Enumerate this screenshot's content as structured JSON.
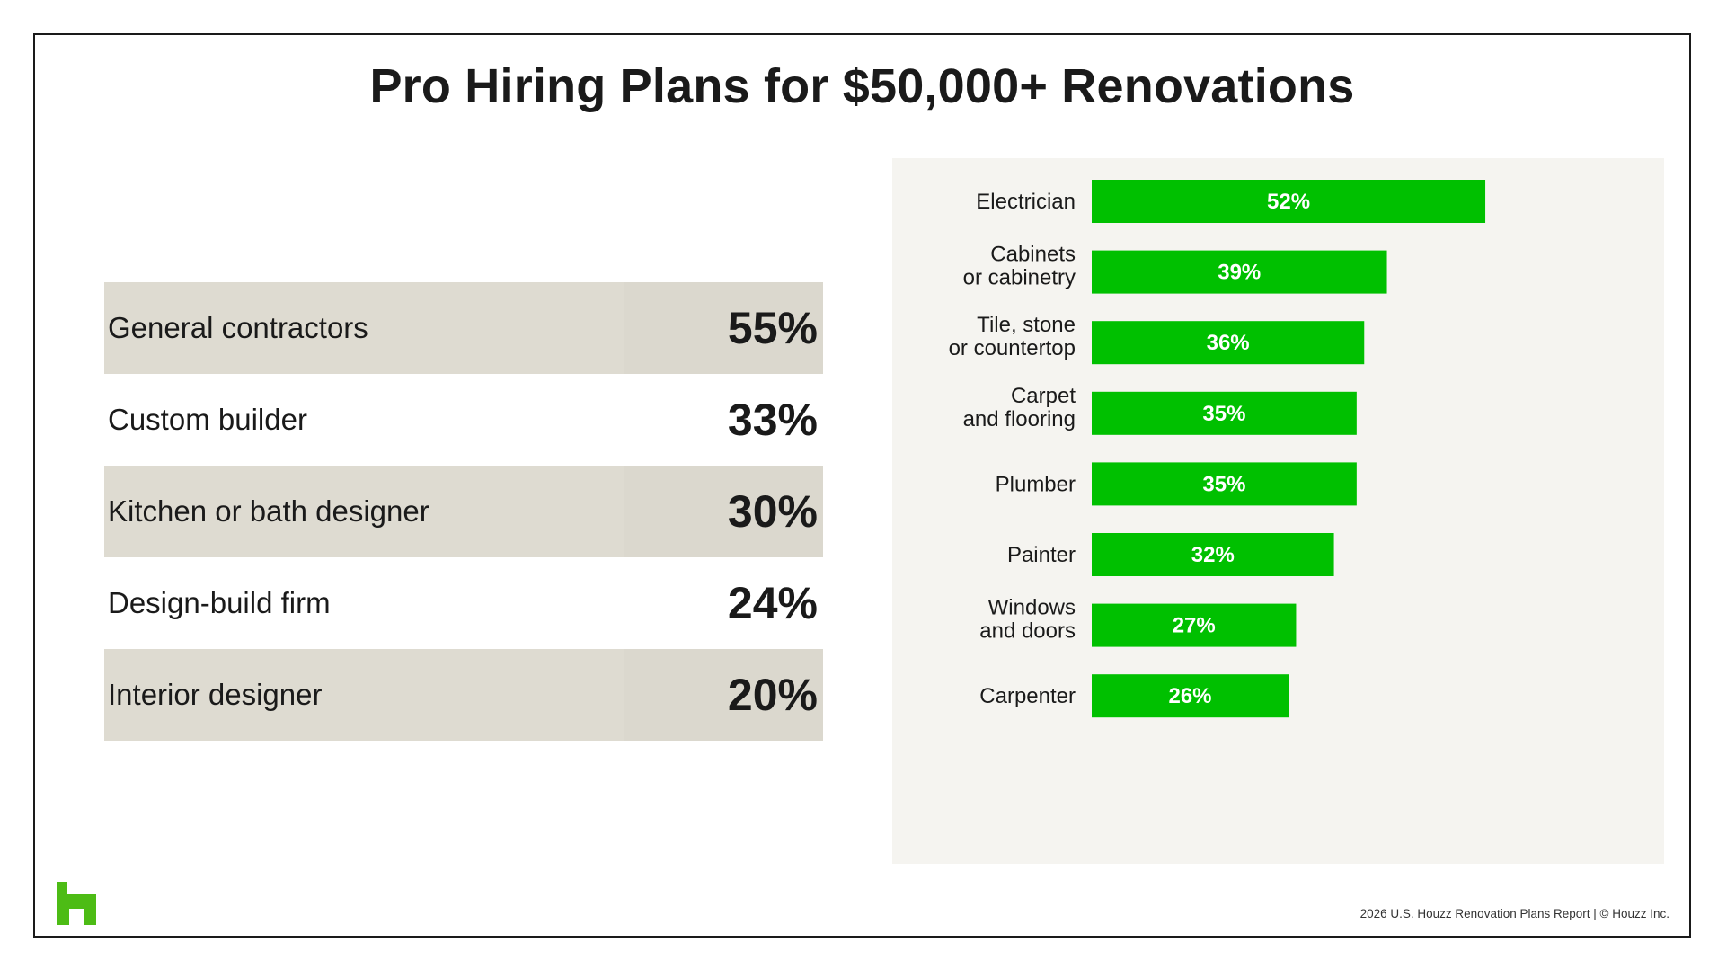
{
  "title": "Pro Hiring Plans for $50,000+ Renovations",
  "table": {
    "rows": [
      {
        "name": "General contractors",
        "value": "55%"
      },
      {
        "name": "Custom builder",
        "value": "33%"
      },
      {
        "name": "Kitchen or bath designer",
        "value": "30%"
      },
      {
        "name": "Design-build firm",
        "value": "24%"
      },
      {
        "name": "Interior designer",
        "value": "20%"
      }
    ]
  },
  "chart_data": {
    "type": "bar",
    "orientation": "horizontal",
    "categories": [
      [
        "Electrician"
      ],
      [
        "Cabinets",
        "or cabinetry"
      ],
      [
        "Tile, stone",
        "or countertop"
      ],
      [
        "Carpet",
        "and flooring"
      ],
      [
        "Plumber"
      ],
      [
        "Painter"
      ],
      [
        "Windows",
        "and doors"
      ],
      [
        "Carpenter"
      ]
    ],
    "values": [
      52,
      39,
      36,
      35,
      35,
      32,
      27,
      26
    ],
    "value_labels": [
      "52%",
      "39%",
      "36%",
      "35%",
      "35%",
      "32%",
      "27%",
      "26%"
    ],
    "unit": "%",
    "xlim": [
      0,
      100
    ],
    "grid": false,
    "bar_color": "#00c000"
  },
  "footer": "2026 U.S. Houzz Renovation Plans Report |  © Houzz Inc.",
  "colors": {
    "logo": "#4dbc15",
    "table_shade": "#dedbd1",
    "chart_bg": "#f5f4f0"
  },
  "logo_icon": "houzz-logo-icon"
}
